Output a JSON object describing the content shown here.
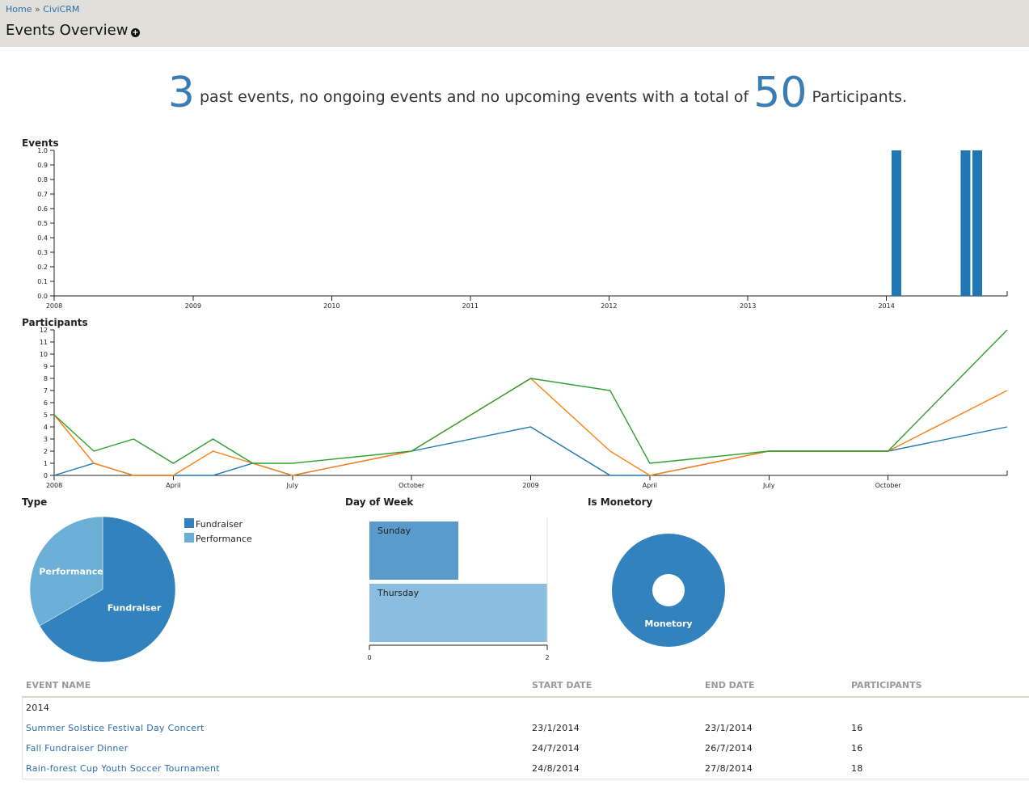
{
  "breadcrumb": {
    "home": "Home",
    "sep": "»",
    "civicrm": "CiviCRM"
  },
  "page": {
    "title": "Events Overview",
    "add_icon": "plus-circle-icon"
  },
  "summary": {
    "past_count": "3",
    "text1": "past events, no ongoing events and no upcoming events with a total of",
    "participants_count": "50",
    "text2": "Participants."
  },
  "colors": {
    "blue": "#1f77b4",
    "orange": "#ff7f0e",
    "green": "#2ca02c",
    "pie_dark": "#3182bd",
    "pie_light": "#6baed6",
    "bar_dark": "#5a9bcb",
    "bar_light": "#8bbde0"
  },
  "chart_data": [
    {
      "type": "bar",
      "title": "Events",
      "ylim": [
        0,
        1.0
      ],
      "yticks": [
        "0.0",
        "0.1",
        "0.2",
        "0.3",
        "0.4",
        "0.5",
        "0.6",
        "0.7",
        "0.8",
        "0.9",
        "1.0"
      ],
      "xticks": [
        "2008",
        "2009",
        "2010",
        "2011",
        "2012",
        "2013",
        "2014"
      ],
      "bars": [
        {
          "date": "2014-01-23",
          "value": 1
        },
        {
          "date": "2014-07-24",
          "value": 1
        },
        {
          "date": "2014-08-24",
          "value": 1
        }
      ]
    },
    {
      "type": "line",
      "title": "Participants",
      "ylim": [
        0,
        12
      ],
      "yticks": [
        "0",
        "1",
        "2",
        "3",
        "4",
        "5",
        "6",
        "7",
        "8",
        "9",
        "10",
        "11",
        "12"
      ],
      "xticks": [
        "2008",
        "April",
        "July",
        "October",
        "2009",
        "April",
        "July",
        "October"
      ],
      "x": [
        "2008-01",
        "2008-02",
        "2008-03",
        "2008-04",
        "2008-05",
        "2008-06",
        "2008-07",
        "2008-10",
        "2009-01",
        "2009-03",
        "2009-04",
        "2009-07",
        "2009-10",
        "2010-01"
      ],
      "series": [
        {
          "name": "blue",
          "values": [
            0,
            1,
            0,
            0,
            0,
            1,
            0,
            2,
            4,
            0,
            0,
            2,
            2,
            4
          ]
        },
        {
          "name": "orange",
          "values": [
            5,
            1,
            0,
            0,
            2,
            1,
            0,
            2,
            8,
            2,
            0,
            2,
            2,
            7
          ]
        },
        {
          "name": "green",
          "values": [
            5,
            2,
            3,
            1,
            3,
            1,
            1,
            2,
            8,
            7,
            1,
            2,
            2,
            12
          ]
        }
      ]
    },
    {
      "type": "pie",
      "title": "Type",
      "slices": [
        {
          "label": "Fundraiser",
          "value": 2
        },
        {
          "label": "Performance",
          "value": 1
        }
      ],
      "legend": [
        "Fundraiser",
        "Performance"
      ]
    },
    {
      "type": "bar",
      "title": "Day of Week",
      "orientation": "horizontal",
      "categories": [
        "Sunday",
        "Thursday"
      ],
      "values": [
        1,
        2
      ],
      "xlim": [
        0,
        2
      ],
      "xticks": [
        "0",
        "2"
      ]
    },
    {
      "type": "pie",
      "title": "Is Monetory",
      "slices": [
        {
          "label": "Monetory",
          "value": 3
        }
      ]
    }
  ],
  "table": {
    "headers": [
      "EVENT NAME",
      "START DATE",
      "END DATE",
      "PARTICIPANTS"
    ],
    "group": "2014",
    "rows": [
      {
        "name": "Summer Solstice Festival Day Concert",
        "start": "23/1/2014",
        "end": "23/1/2014",
        "participants": "16"
      },
      {
        "name": "Fall Fundraiser Dinner",
        "start": "24/7/2014",
        "end": "26/7/2014",
        "participants": "16"
      },
      {
        "name": "Rain-forest Cup Youth Soccer Tournament",
        "start": "24/8/2014",
        "end": "27/8/2014",
        "participants": "18"
      }
    ]
  }
}
